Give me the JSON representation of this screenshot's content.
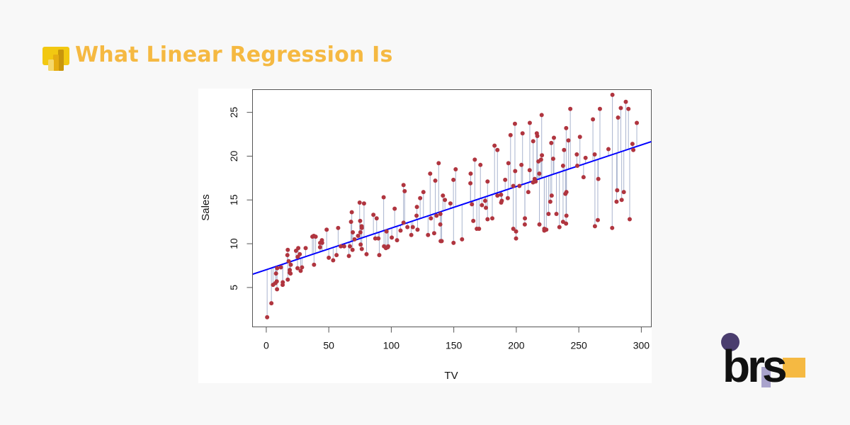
{
  "header": {
    "title": "What Linear Regression Is",
    "logo_icon": "power-bi-icon"
  },
  "brand": {
    "logo_text": "brs",
    "colors": {
      "circle": "#4a3d6e",
      "square_lavender": "#a9a3cc",
      "square_yellow": "#f5b942"
    }
  },
  "colors": {
    "title": "#f5b942",
    "points": "#b0353f",
    "fit_line": "#0000ff",
    "residuals": "#a9b4cf"
  },
  "chart_data": {
    "type": "scatter",
    "xlabel": "TV",
    "ylabel": "Sales",
    "xlim": [
      -11,
      308
    ],
    "ylim": [
      0.5,
      27.6
    ],
    "xticks": [
      0,
      50,
      100,
      150,
      200,
      250,
      300
    ],
    "yticks": [
      5,
      10,
      15,
      20,
      25
    ],
    "grid": false,
    "fit_line": {
      "intercept": 7.03,
      "slope": 0.0475
    },
    "residual_segments": true,
    "points": [
      [
        230.1,
        22.1
      ],
      [
        44.5,
        10.4
      ],
      [
        17.2,
        9.3
      ],
      [
        151.5,
        18.5
      ],
      [
        180.8,
        12.9
      ],
      [
        8.7,
        7.2
      ],
      [
        57.5,
        11.8
      ],
      [
        120.2,
        13.2
      ],
      [
        8.6,
        4.8
      ],
      [
        199.8,
        10.6
      ],
      [
        66.1,
        8.6
      ],
      [
        214.7,
        17.4
      ],
      [
        23.8,
        9.2
      ],
      [
        97.5,
        9.7
      ],
      [
        204.1,
        19
      ],
      [
        195.4,
        22.4
      ],
      [
        67.8,
        12.5
      ],
      [
        281.4,
        24.4
      ],
      [
        69.2,
        11.3
      ],
      [
        147.3,
        14.6
      ],
      [
        218.4,
        18
      ],
      [
        237.4,
        12.5
      ],
      [
        13.2,
        5.6
      ],
      [
        228.3,
        15.5
      ],
      [
        62.3,
        9.7
      ],
      [
        262.9,
        12
      ],
      [
        142.9,
        15
      ],
      [
        240.1,
        15.9
      ],
      [
        248.8,
        18.9
      ],
      [
        70.6,
        10.5
      ],
      [
        292.9,
        21.4
      ],
      [
        112.9,
        11.9
      ],
      [
        97.2,
        9.6
      ],
      [
        265.6,
        17.4
      ],
      [
        95.7,
        9.5
      ],
      [
        290.7,
        12.8
      ],
      [
        266.9,
        25.4
      ],
      [
        74.7,
        14.7
      ],
      [
        43.1,
        10.1
      ],
      [
        228,
        21.5
      ],
      [
        202.5,
        16.6
      ],
      [
        177,
        17.1
      ],
      [
        293.6,
        20.7
      ],
      [
        206.9,
        12.9
      ],
      [
        25.1,
        8.5
      ],
      [
        175.1,
        14.9
      ],
      [
        89.7,
        10.6
      ],
      [
        239.9,
        23.2
      ],
      [
        227.2,
        14.8
      ],
      [
        66.9,
        9.7
      ],
      [
        199.8,
        11.4
      ],
      [
        100.4,
        10.7
      ],
      [
        216.4,
        22.6
      ],
      [
        182.6,
        21.2
      ],
      [
        262.7,
        20.2
      ],
      [
        198.9,
        23.7
      ],
      [
        7.3,
        5.5
      ],
      [
        136.2,
        13.2
      ],
      [
        210.8,
        23.8
      ],
      [
        210.7,
        18.4
      ],
      [
        53.5,
        8.1
      ],
      [
        261.3,
        24.2
      ],
      [
        239.3,
        15.7
      ],
      [
        102.7,
        14
      ],
      [
        131.1,
        18
      ],
      [
        69,
        9.3
      ],
      [
        31.5,
        9.5
      ],
      [
        139.3,
        13.4
      ],
      [
        237.4,
        18.9
      ],
      [
        216.8,
        22.3
      ],
      [
        199.1,
        18.3
      ],
      [
        109.8,
        12.4
      ],
      [
        26.8,
        8.8
      ],
      [
        129.4,
        11
      ],
      [
        213.4,
        17
      ],
      [
        16.9,
        8.7
      ],
      [
        27.5,
        6.9
      ],
      [
        120.5,
        14.2
      ],
      [
        5.4,
        5.3
      ],
      [
        116,
        11
      ],
      [
        76.4,
        11.8
      ],
      [
        239.8,
        12.3
      ],
      [
        75.3,
        11.3
      ],
      [
        68.4,
        13.6
      ],
      [
        213.5,
        21.7
      ],
      [
        193.2,
        15.2
      ],
      [
        76.3,
        12
      ],
      [
        110.7,
        16
      ],
      [
        88.3,
        12.9
      ],
      [
        109.8,
        16.7
      ],
      [
        134.3,
        11.2
      ],
      [
        28.6,
        7.3
      ],
      [
        217.7,
        19.4
      ],
      [
        250.9,
        22.2
      ],
      [
        107.4,
        11.5
      ],
      [
        163.3,
        16.9
      ],
      [
        197.6,
        11.7
      ],
      [
        184.9,
        15.5
      ],
      [
        289.7,
        25.4
      ],
      [
        135.2,
        17.2
      ],
      [
        222.4,
        11.7
      ],
      [
        296.4,
        23.8
      ],
      [
        280.2,
        14.8
      ],
      [
        187.9,
        14.7
      ],
      [
        238.2,
        20.7
      ],
      [
        137.9,
        19.2
      ],
      [
        25,
        7.2
      ],
      [
        90.4,
        8.7
      ],
      [
        13.1,
        5.3
      ],
      [
        255.4,
        19.8
      ],
      [
        225.8,
        13.4
      ],
      [
        241.7,
        21.8
      ],
      [
        175.7,
        14.1
      ],
      [
        209.6,
        15.9
      ],
      [
        78.2,
        14.6
      ],
      [
        75.1,
        12.6
      ],
      [
        139.2,
        12.2
      ],
      [
        76.4,
        9.4
      ],
      [
        125.7,
        15.9
      ],
      [
        19.4,
        6.6
      ],
      [
        141.3,
        15.5
      ],
      [
        18.8,
        7
      ],
      [
        224,
        11.6
      ],
      [
        123.1,
        15.2
      ],
      [
        229.5,
        19.7
      ],
      [
        87.2,
        10.6
      ],
      [
        7.8,
        6.6
      ],
      [
        80.2,
        8.8
      ],
      [
        220.3,
        24.7
      ],
      [
        59.6,
        9.7
      ],
      [
        0.7,
        1.6
      ],
      [
        265.2,
        12.7
      ],
      [
        8.4,
        5.7
      ],
      [
        219.8,
        19.6
      ],
      [
        36.9,
        10.8
      ],
      [
        48.3,
        11.6
      ],
      [
        25.6,
        9.5
      ],
      [
        273.7,
        20.8
      ],
      [
        43,
        9.6
      ],
      [
        184.9,
        20.7
      ],
      [
        73.4,
        10.9
      ],
      [
        193.7,
        19.2
      ],
      [
        220.5,
        20.1
      ],
      [
        104.6,
        10.4
      ],
      [
        96.2,
        11.4
      ],
      [
        140.3,
        10.3
      ],
      [
        240.1,
        13.2
      ],
      [
        243.2,
        25.4
      ],
      [
        38,
        10.9
      ],
      [
        44.7,
        10.1
      ],
      [
        280.7,
        16.1
      ],
      [
        121,
        11.6
      ],
      [
        197.6,
        16.6
      ],
      [
        171.3,
        19
      ],
      [
        187.8,
        15.6
      ],
      [
        4.1,
        3.2
      ],
      [
        93.9,
        15.3
      ],
      [
        149.8,
        10.1
      ],
      [
        11.7,
        7.3
      ],
      [
        131.7,
        12.9
      ],
      [
        172.5,
        14.4
      ],
      [
        85.7,
        13.3
      ],
      [
        188.4,
        14.9
      ],
      [
        163.5,
        18
      ],
      [
        117.2,
        11.9
      ],
      [
        234.5,
        11.9
      ],
      [
        17.9,
        8
      ],
      [
        206.8,
        12.2
      ],
      [
        215.4,
        17.1
      ],
      [
        284.3,
        15
      ],
      [
        50,
        8.4
      ],
      [
        164.5,
        14.5
      ],
      [
        19.6,
        7.6
      ],
      [
        168.4,
        11.7
      ],
      [
        222.4,
        11.5
      ],
      [
        276.9,
        27
      ],
      [
        248.4,
        20.2
      ],
      [
        170.2,
        11.7
      ],
      [
        276.7,
        11.8
      ],
      [
        165.6,
        12.6
      ],
      [
        156.6,
        10.5
      ],
      [
        218.5,
        12.2
      ],
      [
        56.2,
        8.7
      ],
      [
        287.6,
        26.2
      ],
      [
        253.8,
        17.6
      ],
      [
        205,
        22.6
      ],
      [
        139.5,
        10.3
      ],
      [
        191.1,
        17.3
      ],
      [
        286,
        15.9
      ],
      [
        18.7,
        6.7
      ],
      [
        39.5,
        10.8
      ],
      [
        75.5,
        9.9
      ],
      [
        17.2,
        5.9
      ],
      [
        166.8,
        19.6
      ],
      [
        149.7,
        17.3
      ],
      [
        38.2,
        7.6
      ],
      [
        94.2,
        9.7
      ],
      [
        177,
        12.8
      ],
      [
        283.6,
        25.5
      ],
      [
        232.1,
        13.4
      ]
    ]
  }
}
